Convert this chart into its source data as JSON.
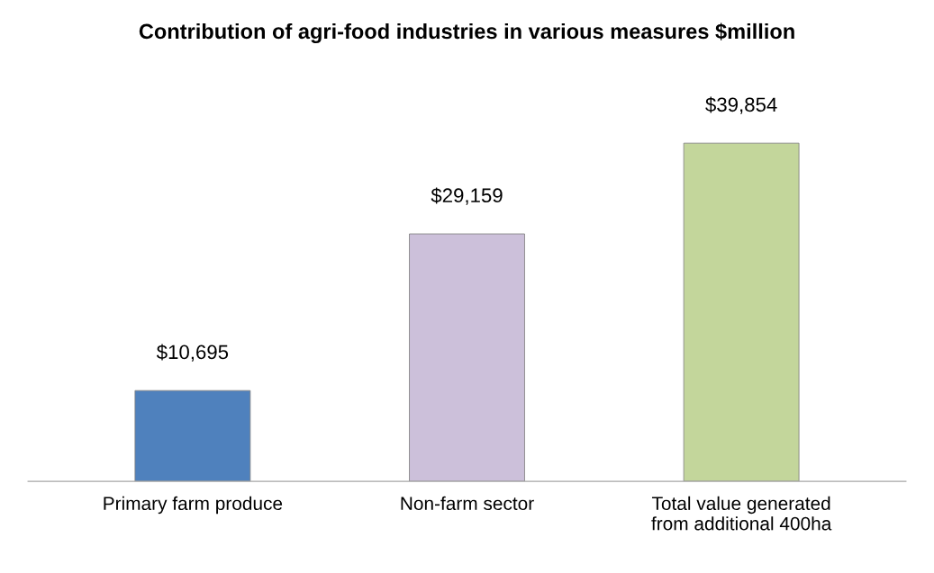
{
  "chart_data": {
    "type": "bar",
    "title": "Contribution of agri-food industries in various measures $million",
    "categories": [
      "Primary farm produce",
      "Non-farm sector",
      "Total value generated\nfrom additional 400ha"
    ],
    "values": [
      10695,
      29159,
      39854
    ],
    "colors": [
      "#4f81bd",
      "#ccc0da",
      "#c3d69b"
    ],
    "value_labels": [
      "$10,695",
      "$29,159",
      "$39,854"
    ],
    "grid": false
  }
}
